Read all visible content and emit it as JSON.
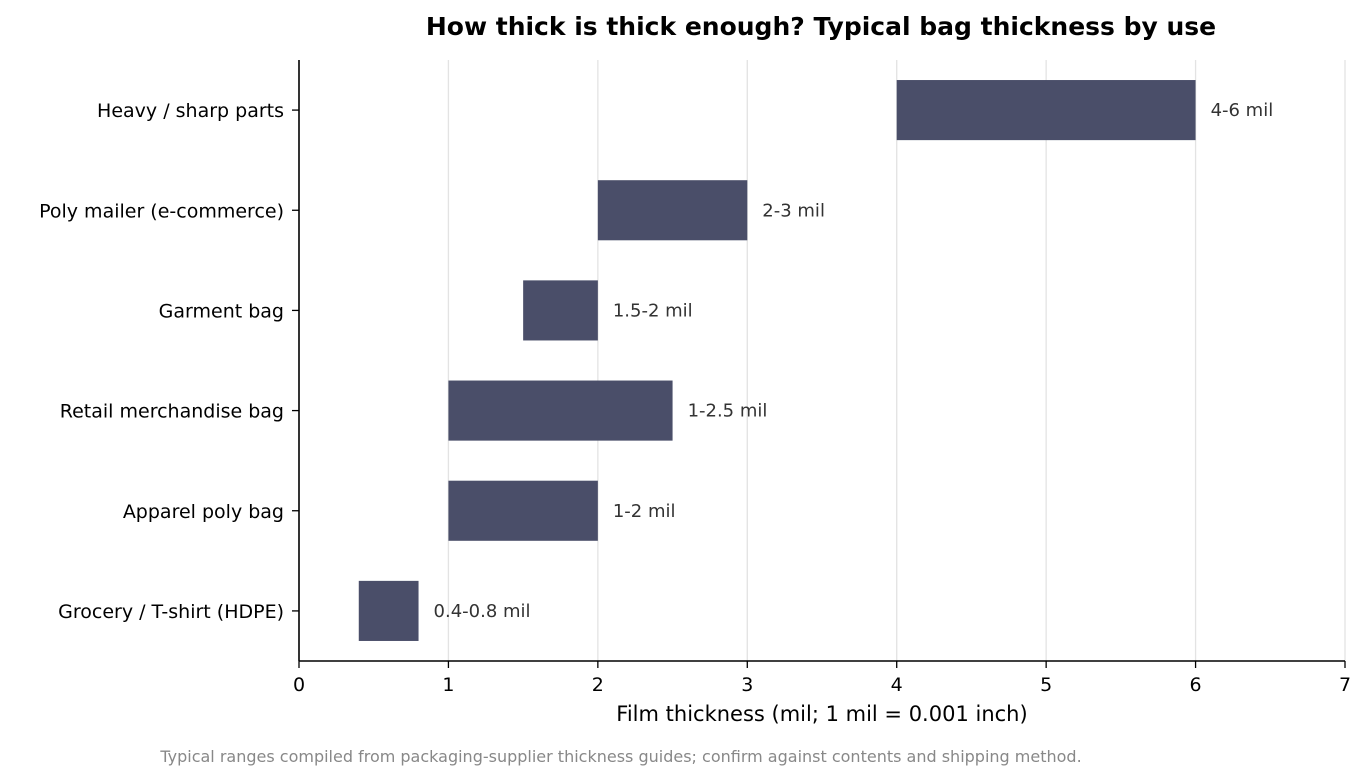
{
  "chart_data": {
    "type": "bar",
    "orientation": "horizontal",
    "title": "How thick is thick enough? Typical bag thickness by use",
    "xlabel": "Film thickness (mil; 1 mil = 0.001 inch)",
    "ylabel": "",
    "xlim": [
      0,
      7
    ],
    "xticks": [
      "0",
      "1",
      "2",
      "3",
      "4",
      "5",
      "6",
      "7"
    ],
    "grid": "vertical",
    "bar_color": "#4a4e69",
    "categories": [
      "Heavy / sharp parts",
      "Poly mailer (e-commerce)",
      "Garment bag",
      "Retail merchandise bag",
      "Apparel poly bag",
      "Grocery / T-shirt (HDPE)"
    ],
    "ranges": [
      [
        4,
        6
      ],
      [
        2,
        3
      ],
      [
        1.5,
        2
      ],
      [
        1,
        2.5
      ],
      [
        1,
        2
      ],
      [
        0.4,
        0.8
      ]
    ],
    "data_labels": [
      "4-6 mil",
      "2-3 mil",
      "1.5-2 mil",
      "1-2.5 mil",
      "1-2 mil",
      "0.4-0.8 mil"
    ],
    "note": "Typical ranges compiled from packaging-supplier thickness guides; confirm against contents and shipping method."
  }
}
